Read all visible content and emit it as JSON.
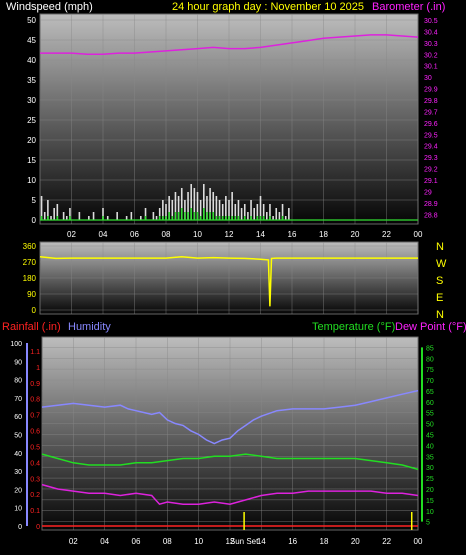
{
  "header": {
    "left_label": "Windspeed (mph)",
    "title": "24 hour graph day : November 10 2025",
    "right_label": "Barometer (.in)"
  },
  "colors": {
    "windspeed": "#ffffff",
    "wind_gust": "#dddddd",
    "wind_avg": "#33dd33",
    "barometer": "#dd22dd",
    "direction": "#ffff00",
    "humidity": "#8888ff",
    "temperature": "#22dd22",
    "dewpoint": "#dd22dd",
    "rainfall": "#ff2222",
    "title": "#ffff00"
  },
  "panel3_labels": {
    "rainfall": "Rainfall (.in)",
    "humidity": "Humidity",
    "temperature": "Temperature (°F)",
    "dewpoint": "Dew Point (°F)"
  },
  "direction_compass": [
    "N",
    "W",
    "S",
    "E",
    "N"
  ],
  "sun_labels": {
    "sunrise": "Sun",
    "sunset": "Set"
  },
  "chart_data": [
    {
      "type": "line",
      "name": "wind_barometer",
      "x_ticks": [
        "02",
        "04",
        "06",
        "08",
        "10",
        "12",
        "14",
        "16",
        "18",
        "20",
        "22",
        "00"
      ],
      "y_left": {
        "label": "Windspeed (mph)",
        "ticks": [
          0,
          5,
          10,
          15,
          20,
          25,
          30,
          35,
          40,
          45,
          50
        ],
        "lim": [
          0,
          50
        ]
      },
      "y_right": {
        "label": "Barometer (.in)",
        "ticks": [
          "28.8",
          "28.9",
          "29",
          "29.1",
          "29.2",
          "29.3",
          "29.4",
          "29.5",
          "29.6",
          "29.7",
          "29.8",
          "29.9",
          "30",
          "30.1",
          "30.2",
          "30.3",
          "30.4",
          "30.5"
        ],
        "lim": [
          28.75,
          30.5
        ]
      },
      "series": [
        {
          "name": "Barometer (.in)",
          "x": [
            0,
            1,
            2,
            3,
            4,
            5,
            6,
            7,
            8,
            9,
            10,
            11,
            12,
            13,
            14,
            15,
            16,
            17,
            18,
            19,
            20,
            21,
            22,
            23,
            24
          ],
          "values": [
            30.21,
            30.21,
            30.21,
            30.2,
            30.2,
            30.21,
            30.21,
            30.22,
            30.23,
            30.24,
            30.25,
            30.26,
            30.25,
            30.25,
            30.26,
            30.28,
            30.3,
            30.32,
            30.34,
            30.35,
            30.36,
            30.37,
            30.37,
            30.36,
            30.35
          ]
        }
      ],
      "wind_x": [
        0.1,
        0.3,
        0.5,
        0.7,
        0.9,
        1.1,
        1.3,
        1.5,
        1.7,
        1.9,
        2.2,
        2.5,
        2.8,
        3.1,
        3.4,
        3.7,
        4.0,
        4.3,
        4.6,
        4.9,
        5.2,
        5.5,
        5.8,
        6.1,
        6.4,
        6.7,
        7.0,
        7.2,
        7.4,
        7.6,
        7.8,
        8.0,
        8.2,
        8.4,
        8.6,
        8.8,
        9.0,
        9.2,
        9.4,
        9.6,
        9.8,
        10.0,
        10.2,
        10.4,
        10.6,
        10.8,
        11.0,
        11.2,
        11.4,
        11.6,
        11.8,
        12.0,
        12.2,
        12.4,
        12.6,
        12.8,
        13.0,
        13.2,
        13.4,
        13.6,
        13.8,
        14.0,
        14.2,
        14.4,
        14.6,
        14.8,
        15.0,
        15.2,
        15.4,
        15.6,
        15.8,
        16.0,
        16.5,
        17,
        18,
        19,
        20,
        21,
        22,
        23,
        24
      ],
      "wind_gust": [
        6,
        2,
        5,
        1,
        3,
        4,
        0,
        2,
        1,
        3,
        0,
        2,
        0,
        1,
        2,
        0,
        3,
        1,
        0,
        2,
        0,
        1,
        2,
        0,
        1,
        3,
        0,
        2,
        1,
        3,
        5,
        4,
        6,
        5,
        7,
        6,
        8,
        5,
        7,
        9,
        8,
        7,
        5,
        9,
        6,
        8,
        7,
        6,
        5,
        4,
        6,
        5,
        7,
        4,
        5,
        3,
        4,
        2,
        5,
        3,
        4,
        6,
        4,
        2,
        4,
        1,
        3,
        2,
        4,
        1,
        3,
        0,
        0,
        0,
        0,
        0,
        0,
        0,
        0,
        0,
        0
      ],
      "wind_avg": [
        1,
        0,
        1,
        0,
        0,
        1,
        0,
        0,
        0,
        1,
        0,
        0,
        0,
        0,
        0,
        0,
        1,
        0,
        0,
        0,
        0,
        0,
        0,
        0,
        0,
        1,
        0,
        0,
        0,
        1,
        1,
        1,
        2,
        1,
        2,
        2,
        3,
        2,
        2,
        3,
        2,
        2,
        1,
        3,
        2,
        2,
        2,
        1,
        1,
        1,
        1,
        1,
        1,
        1,
        1,
        0,
        1,
        0,
        1,
        0,
        1,
        1,
        1,
        0,
        1,
        0,
        0,
        0,
        1,
        0,
        0,
        0,
        0,
        0,
        0,
        0,
        0,
        0,
        0,
        0,
        0
      ]
    },
    {
      "type": "line",
      "name": "wind_direction",
      "x_ticks": [
        "02",
        "04",
        "06",
        "08",
        "10",
        "12",
        "14",
        "16",
        "18",
        "20",
        "22",
        "00"
      ],
      "y_left": {
        "ticks": [
          0,
          90,
          180,
          270,
          360
        ],
        "lim": [
          0,
          360
        ]
      },
      "series": [
        {
          "name": "Direction",
          "x": [
            0,
            1,
            2,
            3,
            4,
            5,
            6,
            7,
            8,
            9,
            10,
            11,
            12,
            13,
            14,
            14.5,
            14.6,
            14.7,
            15,
            16,
            17,
            18,
            19,
            20,
            21,
            22,
            23,
            24
          ],
          "values": [
            300,
            290,
            292,
            292,
            292,
            292,
            292,
            292,
            292,
            300,
            292,
            295,
            292,
            290,
            286,
            282,
            20,
            290,
            292,
            292,
            292,
            292,
            292,
            292,
            292,
            292,
            292,
            292
          ]
        }
      ]
    },
    {
      "type": "line",
      "name": "temperature_humidity",
      "x_ticks": [
        "02",
        "04",
        "06",
        "08",
        "10",
        "12",
        "Sun Set",
        "14",
        "16",
        "18",
        "20",
        "22",
        "00"
      ],
      "y_humidity": {
        "label": "Humidity",
        "ticks": [
          0,
          10,
          20,
          30,
          40,
          50,
          60,
          70,
          80,
          90,
          100
        ],
        "lim": [
          0,
          100
        ]
      },
      "y_rain": {
        "label": "Rainfall (.in)",
        "ticks": [
          "0",
          "0.1",
          "0.2",
          "0.3",
          "0.4",
          "0.5",
          "0.6",
          "0.7",
          "0.8",
          "0.9",
          "1",
          "1.1"
        ],
        "lim": [
          0,
          1.15
        ]
      },
      "y_temp": {
        "label": "Temperature (°F)",
        "ticks": [
          5,
          10,
          15,
          20,
          25,
          30,
          35,
          40,
          45,
          50,
          55,
          60,
          65,
          70,
          75,
          80,
          85
        ],
        "lim": [
          3,
          87
        ]
      },
      "series": [
        {
          "name": "Humidity",
          "x": [
            0,
            1,
            2,
            3,
            4,
            5,
            5.5,
            6,
            6.5,
            7,
            7.5,
            8,
            8.5,
            9,
            9.5,
            10,
            10.5,
            11,
            11.5,
            12,
            12.5,
            13,
            13.5,
            14,
            15,
            16,
            17,
            18,
            19,
            20,
            21,
            22,
            23,
            24
          ],
          "values": [
            65,
            66,
            67,
            66,
            65,
            66,
            64,
            63,
            62,
            61,
            62,
            58,
            56,
            55,
            52,
            50,
            47,
            45,
            47,
            48,
            52,
            55,
            58,
            60,
            63,
            64,
            64,
            64,
            65,
            66,
            68,
            70,
            72,
            74
          ]
        },
        {
          "name": "Temperature (°F)",
          "x": [
            0,
            1,
            2,
            3,
            4,
            5,
            6,
            7,
            8,
            9,
            10,
            11,
            12,
            13,
            14,
            15,
            16,
            17,
            18,
            19,
            20,
            21,
            22,
            23,
            24
          ],
          "values": [
            36,
            34,
            32,
            31,
            31,
            31,
            32,
            32,
            33,
            34,
            34,
            35,
            35,
            36,
            35,
            34,
            34,
            34,
            34,
            34,
            34,
            33,
            32,
            31,
            29
          ]
        },
        {
          "name": "Dew Point (°F)",
          "x": [
            0,
            1,
            2,
            3,
            4,
            5,
            6,
            7,
            7.5,
            8,
            9,
            10,
            11,
            12,
            13,
            14,
            15,
            16,
            17,
            18,
            19,
            20,
            21,
            22,
            23,
            24
          ],
          "values": [
            22,
            20,
            19,
            18,
            18,
            17,
            18,
            17,
            13,
            14,
            13,
            13,
            14,
            13,
            15,
            17,
            18,
            18,
            19,
            19,
            19,
            19,
            19,
            18,
            18,
            17
          ]
        },
        {
          "name": "Rainfall (.in)",
          "x": [
            0,
            24
          ],
          "values": [
            0,
            0
          ]
        }
      ]
    }
  ]
}
